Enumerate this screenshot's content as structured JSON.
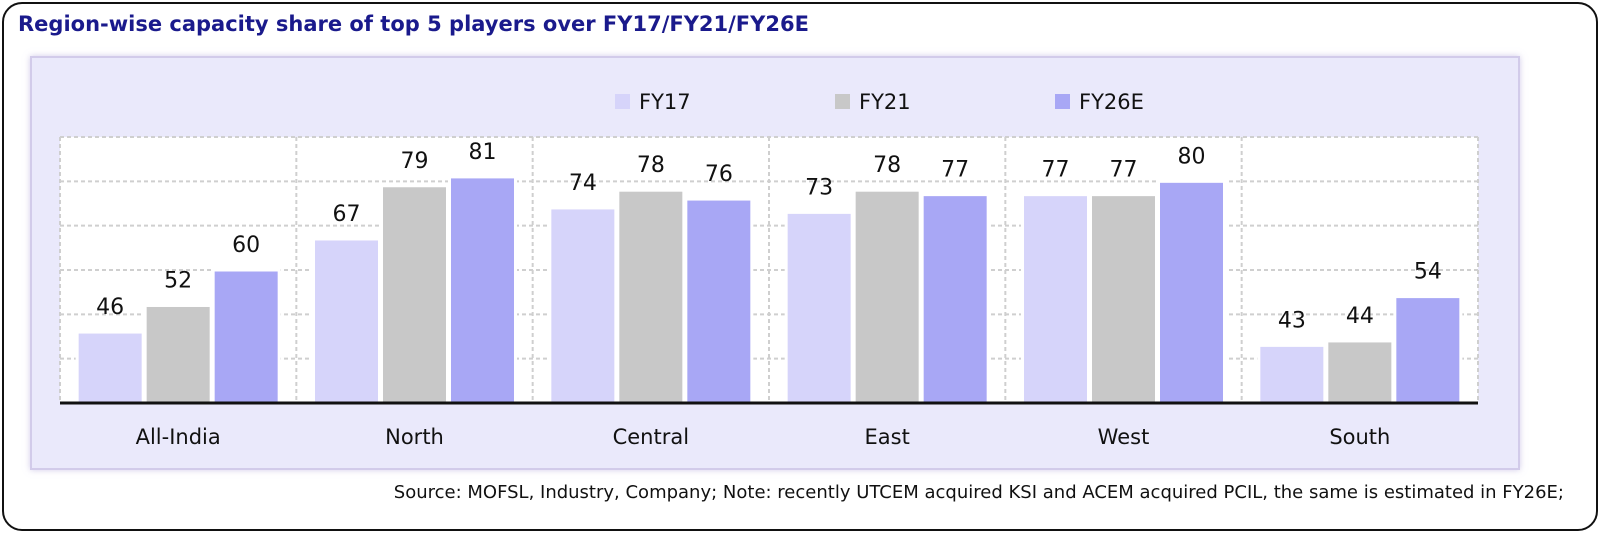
{
  "title": "Region-wise capacity share of top 5 players over FY17/FY21/FY26E",
  "source": "Source: MOFSL, Industry, Company; Note: recently UTCEM acquired KSI and ACEM acquired PCIL, the same is estimated in FY26E;",
  "colors": {
    "title": "#1a1a8c",
    "panel_background": "#eae9fb",
    "plot_background": "#ffffff",
    "FY17": "#d6d4fa",
    "FY21": "#c8c8c8",
    "FY26E": "#a8a7f5"
  },
  "chart_data": {
    "type": "bar",
    "title": "Region-wise capacity share of top 5 players over FY17/FY21/FY26E",
    "categories": [
      "All-India",
      "North",
      "Central",
      "East",
      "West",
      "South"
    ],
    "series": [
      {
        "name": "FY17",
        "values": [
          46,
          67,
          74,
          73,
          77,
          43
        ]
      },
      {
        "name": "FY21",
        "values": [
          52,
          79,
          78,
          78,
          77,
          44
        ]
      },
      {
        "name": "FY26E",
        "values": [
          60,
          81,
          76,
          77,
          80,
          54
        ]
      }
    ],
    "xlabel": "",
    "ylabel": "",
    "ylim": [
      30,
      90
    ],
    "grid": true,
    "data_labels": true,
    "legend_position": "top"
  }
}
